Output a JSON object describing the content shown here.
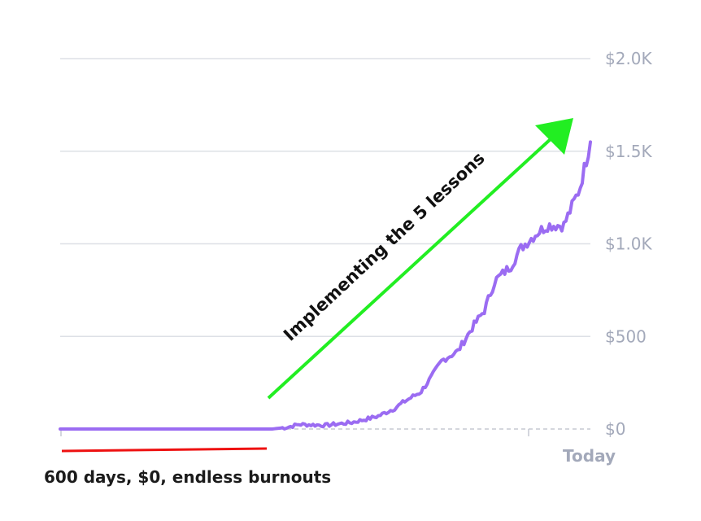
{
  "chart_data": {
    "type": "line",
    "title": "",
    "xlabel": "",
    "ylabel": "",
    "ylim": [
      0,
      2000
    ],
    "y_axis_side": "right",
    "grid": true,
    "y_ticks": [
      {
        "value": 0,
        "label": "$0"
      },
      {
        "value": 500,
        "label": "$500"
      },
      {
        "value": 1000,
        "label": "$1.0K"
      },
      {
        "value": 1500,
        "label": "$1.5K"
      },
      {
        "value": 2000,
        "label": "$2.0K"
      }
    ],
    "x_end_label": "Today",
    "series": [
      {
        "color": "#9b6cf2",
        "x": [
          0,
          10,
          20,
          30,
          40,
          43,
          45,
          50,
          55,
          58,
          60,
          63,
          65,
          68,
          70,
          72,
          75,
          78,
          80,
          82,
          85,
          87,
          90,
          92,
          95,
          98,
          100
        ],
        "values": [
          0,
          0,
          0,
          0,
          0,
          10,
          25,
          20,
          35,
          55,
          70,
          110,
          150,
          200,
          280,
          370,
          420,
          560,
          640,
          800,
          880,
          980,
          1060,
          1100,
          1100,
          1300,
          1550
        ]
      }
    ],
    "annotations": {
      "growth_arrow": {
        "label": "Implementing the 5 lessons",
        "color": "#22ee22"
      },
      "flat_period": {
        "label": "600 days, $0, endless burnouts",
        "color": "#ee1111"
      }
    }
  }
}
